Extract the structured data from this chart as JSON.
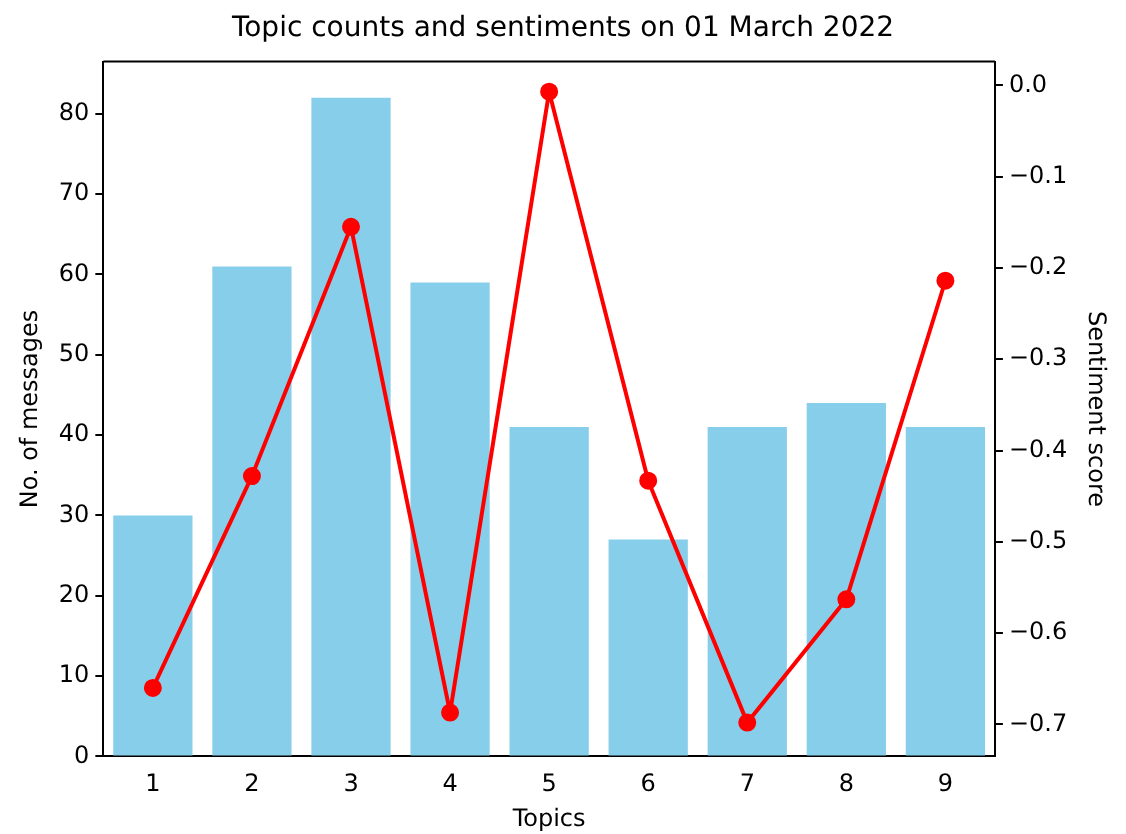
{
  "chart_data": {
    "type": "bar",
    "title": "Topic counts and sentiments on 01 March 2022",
    "xlabel": "Topics",
    "ylabel": "No. of messages",
    "y2label": "Sentiment score",
    "categories": [
      "1",
      "2",
      "3",
      "4",
      "5",
      "6",
      "7",
      "8",
      "9"
    ],
    "series": [
      {
        "color": "#87ceeb",
        "values": [
          30,
          61,
          82,
          59,
          41,
          27,
          41,
          44,
          41
        ]
      },
      {
        "type": "line",
        "axis": "y2",
        "color": "#ff0000",
        "marker": "circle",
        "values": [
          -0.66,
          -0.428,
          -0.155,
          -0.687,
          -0.007,
          -0.433,
          -0.698,
          -0.563,
          -0.214
        ]
      }
    ],
    "ylim": [
      0,
      86.5
    ],
    "yticks": [
      0,
      10,
      20,
      30,
      40,
      50,
      60,
      70,
      80
    ],
    "y2lim": [
      -0.735,
      0.026
    ],
    "y2ticks": [
      {
        "value": -0.7,
        "label": "−0.7"
      },
      {
        "value": -0.6,
        "label": "−0.6"
      },
      {
        "value": -0.5,
        "label": "−0.5"
      },
      {
        "value": -0.4,
        "label": "−0.4"
      },
      {
        "value": -0.3,
        "label": "−0.3"
      },
      {
        "value": -0.2,
        "label": "−0.2"
      },
      {
        "value": -0.1,
        "label": "−0.1"
      },
      {
        "value": 0,
        "label": "0.0"
      }
    ],
    "grid": false,
    "legend": false
  }
}
